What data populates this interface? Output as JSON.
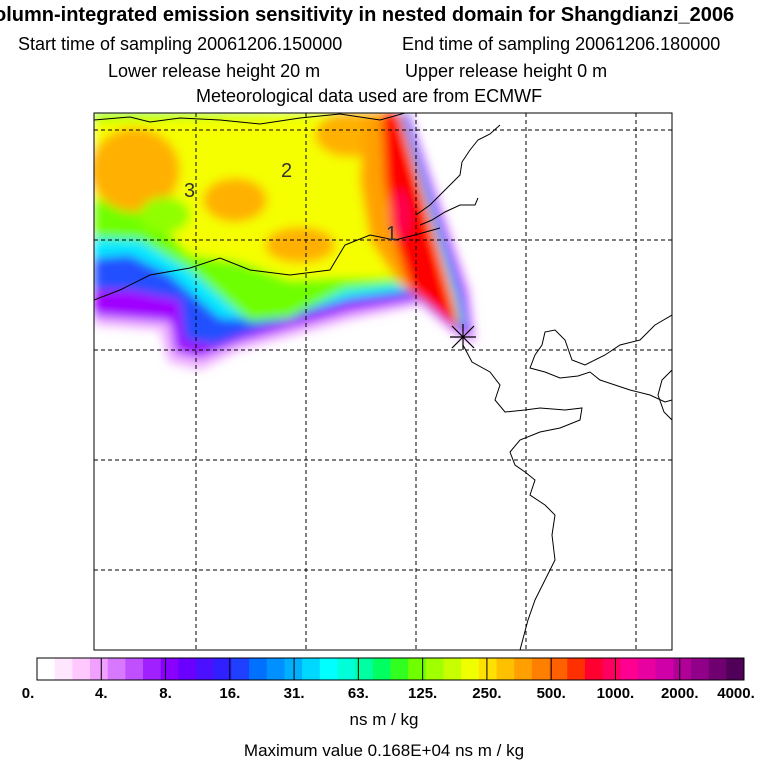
{
  "header": {
    "title": "olumn-integrated emission sensitivity in nested domain for Shangdianzi_2006",
    "start_label": "Start time of sampling 20061206.150000",
    "end_label": "End time of sampling 20061206.180000",
    "lower_label": "Lower release height   20 m",
    "upper_label": "Upper release height    0 m",
    "met_label": "Meteorological data used are from ECMWF"
  },
  "map": {
    "contour_labels": [
      "1",
      "2",
      "3"
    ]
  },
  "colorbar": {
    "tick_labels": [
      "0.",
      "4.",
      "8.",
      "16.",
      "31.",
      "63.",
      "125.",
      "250.",
      "500.",
      "1000.",
      "2000.",
      "4000."
    ],
    "colors": [
      "#ffffff",
      "#ffe6ff",
      "#ffc8ff",
      "#f0a0ff",
      "#d878ff",
      "#c050ff",
      "#a020ff",
      "#8a00ff",
      "#6a00ff",
      "#4a10ff",
      "#3020ff",
      "#2040ff",
      "#0070ff",
      "#0090ff",
      "#00b0ff",
      "#00d8ff",
      "#00ffff",
      "#00ffd8",
      "#00ffa0",
      "#00ff60",
      "#30ff20",
      "#70ff00",
      "#a0ff00",
      "#c8ff00",
      "#f0ff00",
      "#ffe000",
      "#ffc000",
      "#ffa000",
      "#ff8000",
      "#ff6000",
      "#ff3000",
      "#ff0030",
      "#ff0060",
      "#ff0090",
      "#e800a0",
      "#d000a8",
      "#b00098",
      "#900088",
      "#700070",
      "#500058"
    ],
    "unit": "ns m / kg"
  },
  "footer": {
    "max_value": "Maximum value  0.168E+04 ns m / kg"
  },
  "colors": {
    "red": "#ff0000",
    "orange": "#ffa000",
    "yellow": "#f5ff00",
    "green": "#70ff00",
    "cyan": "#00e8ff",
    "blue": "#2050ff",
    "purple": "#9000ff",
    "lavender": "#f0b0ff"
  }
}
